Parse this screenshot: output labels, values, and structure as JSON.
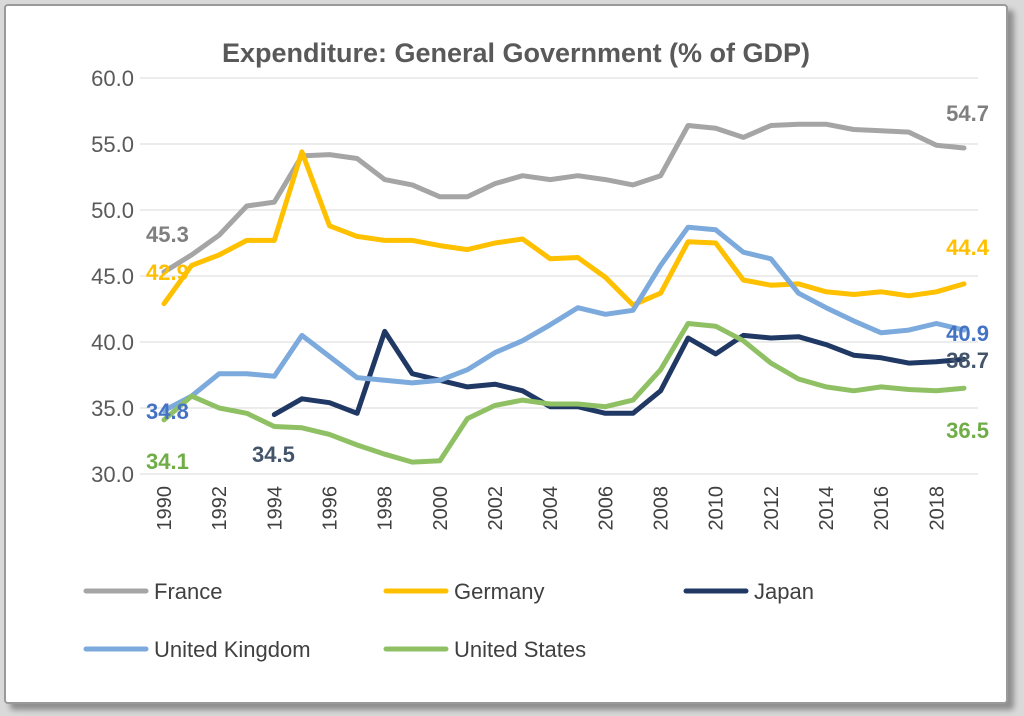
{
  "chart_data": {
    "type": "line",
    "title": "Expenditure: General Government (% of GDP)",
    "xlabel": "",
    "ylabel": "",
    "ylim": [
      30,
      60
    ],
    "yticks": [
      "60.0",
      "55.0",
      "50.0",
      "45.0",
      "40.0",
      "35.0",
      "30.0"
    ],
    "xticks": [
      "1990",
      "1992",
      "1994",
      "1996",
      "1998",
      "2000",
      "2002",
      "2004",
      "2006",
      "2008",
      "2010",
      "2012",
      "2014",
      "2016",
      "2018"
    ],
    "grid": true,
    "legend_position": "bottom",
    "x": [
      1990,
      1991,
      1992,
      1993,
      1994,
      1995,
      1996,
      1997,
      1998,
      1999,
      2000,
      2001,
      2002,
      2003,
      2004,
      2005,
      2006,
      2007,
      2008,
      2009,
      2010,
      2011,
      2012,
      2013,
      2014,
      2015,
      2016,
      2017,
      2018,
      2019
    ],
    "series": [
      {
        "name": "France",
        "color": "#a5a5a5",
        "values": [
          45.3,
          46.6,
          48.1,
          50.3,
          50.6,
          54.1,
          54.2,
          53.9,
          52.3,
          51.9,
          51.0,
          51.0,
          52.0,
          52.6,
          52.3,
          52.6,
          52.3,
          51.9,
          52.6,
          56.4,
          56.2,
          55.5,
          56.4,
          56.5,
          56.5,
          56.1,
          56.0,
          55.9,
          54.9,
          54.7
        ],
        "end_label": "54.7",
        "start_label": "45.3"
      },
      {
        "name": "Germany",
        "color": "#ffc000",
        "values": [
          42.9,
          45.8,
          46.6,
          47.7,
          47.7,
          54.4,
          48.8,
          48.0,
          47.7,
          47.7,
          47.3,
          47.0,
          47.5,
          47.8,
          46.3,
          46.4,
          44.9,
          42.8,
          43.7,
          47.6,
          47.5,
          44.7,
          44.3,
          44.4,
          43.8,
          43.6,
          43.8,
          43.5,
          43.8,
          44.4
        ],
        "end_label": "44.4",
        "start_label": "42.9"
      },
      {
        "name": "Japan",
        "color": "#203864",
        "start_index": 4,
        "values": [
          null,
          null,
          null,
          null,
          34.5,
          35.7,
          35.4,
          34.6,
          40.8,
          37.6,
          37.1,
          36.6,
          36.8,
          36.3,
          35.1,
          35.1,
          34.6,
          34.6,
          36.3,
          40.3,
          39.1,
          40.5,
          40.3,
          40.4,
          39.8,
          39.0,
          38.8,
          38.4,
          38.5,
          38.7
        ],
        "end_label": "38.7",
        "start_label": "34.5"
      },
      {
        "name": "United Kingdom",
        "color": "#7caadc",
        "values": [
          34.8,
          35.9,
          37.6,
          37.6,
          37.4,
          40.5,
          38.9,
          37.3,
          37.1,
          36.9,
          37.1,
          37.9,
          39.2,
          40.1,
          41.3,
          42.6,
          42.1,
          42.4,
          45.8,
          48.7,
          48.5,
          46.8,
          46.3,
          43.7,
          42.6,
          41.6,
          40.7,
          40.9,
          41.4,
          40.9
        ],
        "end_label": "40.9",
        "start_label": "34.8"
      },
      {
        "name": "United States",
        "color": "#8fc064",
        "values": [
          34.1,
          35.9,
          35.0,
          34.6,
          33.6,
          33.5,
          33.0,
          32.2,
          31.5,
          30.9,
          31.0,
          34.2,
          35.2,
          35.6,
          35.3,
          35.3,
          35.1,
          35.6,
          37.9,
          41.4,
          41.2,
          40.1,
          38.4,
          37.2,
          36.6,
          36.3,
          36.6,
          36.4,
          36.3,
          36.5
        ],
        "end_label": "36.5",
        "start_label": "34.1"
      }
    ]
  }
}
